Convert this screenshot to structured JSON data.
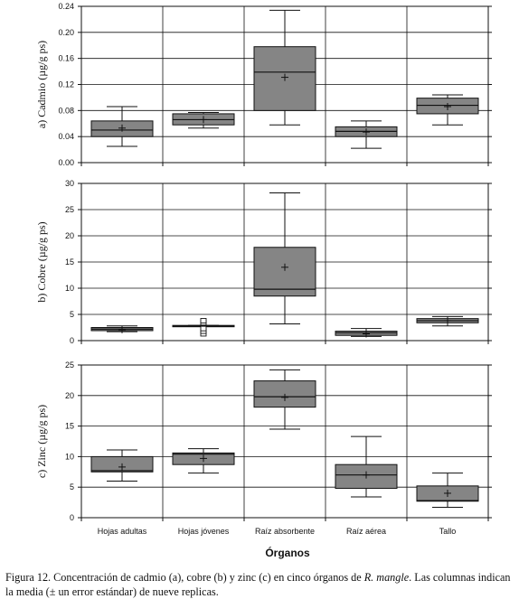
{
  "chart_data": [
    {
      "type": "box",
      "ylabel": "a) Cadmio (µg/g ps)",
      "ylim": [
        0,
        0.24
      ],
      "yticks": [
        0,
        0.04,
        0.08,
        0.12,
        0.16,
        0.2,
        0.24
      ],
      "ytick_labels": [
        "0.00",
        "0.04",
        "0.08",
        "0.12",
        "0.16",
        "0.20",
        "0.24"
      ],
      "grid": true,
      "categories": [
        "Hojas adultas",
        "Hojas jóvenes",
        "Raíz absorbente",
        "Raíz aérea",
        "Tallo"
      ],
      "boxes": [
        {
          "whisker_low": 0.025,
          "q1": 0.04,
          "median": 0.05,
          "q3": 0.064,
          "whisker_high": 0.086,
          "mean": 0.053,
          "outliers": []
        },
        {
          "whisker_low": 0.053,
          "q1": 0.058,
          "median": 0.066,
          "q3": 0.075,
          "whisker_high": 0.077,
          "mean": 0.066,
          "outliers": []
        },
        {
          "whisker_low": 0.058,
          "q1": 0.08,
          "median": 0.139,
          "q3": 0.178,
          "whisker_high": 0.234,
          "mean": 0.131,
          "outliers": []
        },
        {
          "whisker_low": 0.022,
          "q1": 0.04,
          "median": 0.048,
          "q3": 0.055,
          "whisker_high": 0.064,
          "mean": 0.047,
          "outliers": []
        },
        {
          "whisker_low": 0.058,
          "q1": 0.075,
          "median": 0.088,
          "q3": 0.099,
          "whisker_high": 0.104,
          "mean": 0.086,
          "outliers": []
        }
      ]
    },
    {
      "type": "box",
      "ylabel": "b) Cobre (µg/g ps)",
      "ylim": [
        0,
        30
      ],
      "yticks": [
        0,
        5,
        10,
        15,
        20,
        25,
        30
      ],
      "ytick_labels": [
        "0",
        "5",
        "10",
        "15",
        "20",
        "25",
        "30"
      ],
      "grid": true,
      "categories": [
        "Hojas adultas",
        "Hojas jóvenes",
        "Raíz absorbente",
        "Raíz aérea",
        "Tallo"
      ],
      "boxes": [
        {
          "whisker_low": 1.7,
          "q1": 1.9,
          "median": 2.2,
          "q3": 2.5,
          "whisker_high": 2.8,
          "mean": 2.1,
          "outliers": []
        },
        {
          "whisker_low": 2.7,
          "q1": 2.7,
          "median": 2.8,
          "q3": 2.9,
          "whisker_high": 2.9,
          "mean": 2.8,
          "outliers": [
            1.3,
            1.8,
            2.3,
            3.4,
            3.8
          ]
        },
        {
          "whisker_low": 3.2,
          "q1": 8.5,
          "median": 9.8,
          "q3": 17.8,
          "whisker_high": 28.2,
          "mean": 14.0,
          "outliers": []
        },
        {
          "whisker_low": 0.8,
          "q1": 1.0,
          "median": 1.5,
          "q3": 1.8,
          "whisker_high": 2.3,
          "mean": 1.3,
          "outliers": []
        },
        {
          "whisker_low": 2.8,
          "q1": 3.4,
          "median": 3.8,
          "q3": 4.2,
          "whisker_high": 4.6,
          "mean": 3.8,
          "outliers": []
        }
      ]
    },
    {
      "type": "box",
      "ylabel": "c) Zinc (µg/g ps)",
      "ylim": [
        0,
        25
      ],
      "yticks": [
        0,
        5,
        10,
        15,
        20,
        25
      ],
      "ytick_labels": [
        "0",
        "5",
        "10",
        "15",
        "20",
        "25"
      ],
      "xlabel": "Órganos",
      "grid": true,
      "categories": [
        "Hojas adultas",
        "Hojas jóvenes",
        "Raíz absorbente",
        "Raíz aérea",
        "Tallo"
      ],
      "boxes": [
        {
          "whisker_low": 6.0,
          "q1": 7.5,
          "median": 7.7,
          "q3": 10.0,
          "whisker_high": 11.1,
          "mean": 8.3,
          "outliers": []
        },
        {
          "whisker_low": 7.3,
          "q1": 8.7,
          "median": 10.4,
          "q3": 10.6,
          "whisker_high": 11.3,
          "mean": 9.7,
          "outliers": []
        },
        {
          "whisker_low": 14.5,
          "q1": 18.1,
          "median": 19.8,
          "q3": 22.4,
          "whisker_high": 24.2,
          "mean": 19.7,
          "outliers": []
        },
        {
          "whisker_low": 3.4,
          "q1": 4.8,
          "median": 7.0,
          "q3": 8.7,
          "whisker_high": 13.3,
          "mean": 7.0,
          "outliers": []
        },
        {
          "whisker_low": 1.7,
          "q1": 2.7,
          "median": 2.8,
          "q3": 5.2,
          "whisker_high": 7.3,
          "mean": 4.0,
          "outliers": []
        }
      ]
    }
  ],
  "caption": {
    "part1": "Figura 12. Concentración de cadmio (a), cobre (b) y zinc (c) en cinco órganos de ",
    "species": "R. mangle",
    "part2": ". Las columnas indican la media (± un error estándar) de nueve replicas."
  },
  "colors": {
    "box_fill": "#858585",
    "line": "#111111",
    "grid": "#111111"
  }
}
